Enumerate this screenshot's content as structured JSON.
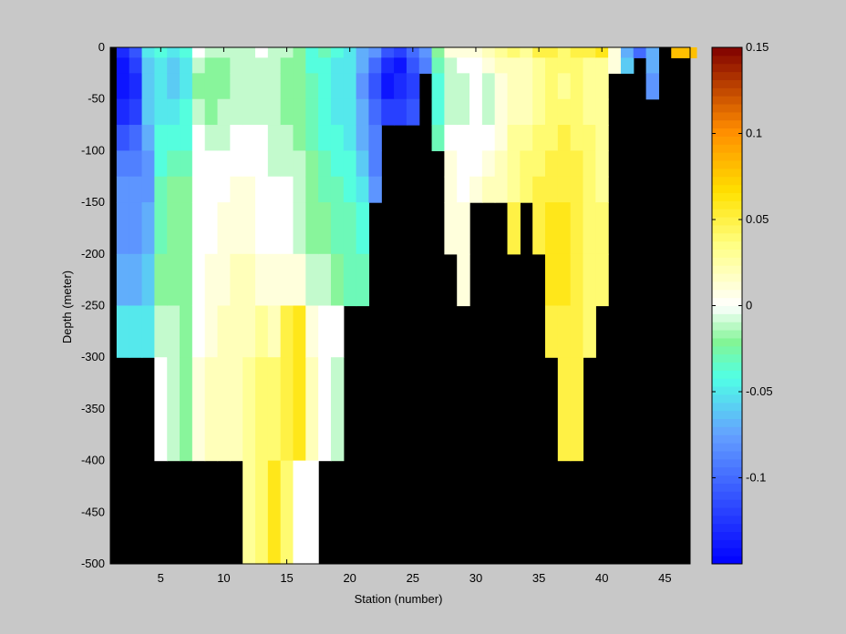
{
  "chart_data": {
    "type": "heatmap",
    "title": "",
    "xlabel": "Station (number)",
    "ylabel": "Depth (meter)",
    "xlim": [
      1,
      47
    ],
    "ylim": [
      -500,
      0
    ],
    "x_ticks": [
      5,
      10,
      15,
      20,
      25,
      30,
      35,
      40,
      45
    ],
    "y_ticks": [
      0,
      -50,
      -100,
      -150,
      -200,
      -250,
      -300,
      -350,
      -400,
      -450,
      -500
    ],
    "colorbar": {
      "clim": [
        -0.15,
        0.15
      ],
      "ticks": [
        0.15,
        0.1,
        0.05,
        0,
        -0.05,
        -0.1
      ],
      "tick_labels": [
        "0.15",
        "0.1",
        "0.05",
        "0",
        "-0.05",
        "-0.1"
      ],
      "colormap": "jet-white-center"
    },
    "depth_bins_top": [
      0,
      -10,
      -25,
      -50,
      -75,
      -100,
      -125,
      -150,
      -200,
      -250,
      -300,
      -400
    ],
    "depth_bins_bottom": [
      -10,
      -25,
      -50,
      -75,
      -100,
      -125,
      -150,
      -200,
      -250,
      -300,
      -400,
      -500
    ],
    "mask_color": "#000000",
    "columns": [
      {
        "station": 2,
        "values": [
          -0.13,
          -0.14,
          -0.14,
          -0.13,
          -0.11,
          -0.09,
          -0.08,
          -0.08,
          -0.07,
          -0.05,
          null,
          null
        ]
      },
      {
        "station": 3,
        "values": [
          -0.11,
          -0.12,
          -0.13,
          -0.12,
          -0.1,
          -0.09,
          -0.08,
          -0.08,
          -0.07,
          -0.05,
          null,
          null
        ]
      },
      {
        "station": 4,
        "values": [
          -0.05,
          -0.06,
          -0.06,
          -0.06,
          -0.07,
          -0.08,
          -0.08,
          -0.07,
          -0.06,
          -0.05,
          null,
          null
        ]
      },
      {
        "station": 5,
        "values": [
          -0.04,
          -0.05,
          -0.05,
          -0.05,
          -0.04,
          -0.04,
          -0.03,
          -0.03,
          -0.02,
          -0.01,
          0.0,
          null
        ]
      },
      {
        "station": 6,
        "values": [
          -0.05,
          -0.06,
          -0.06,
          -0.05,
          -0.04,
          -0.03,
          -0.02,
          -0.02,
          -0.02,
          -0.01,
          -0.01,
          null
        ]
      },
      {
        "station": 7,
        "values": [
          -0.04,
          -0.05,
          -0.05,
          -0.04,
          -0.04,
          -0.03,
          -0.02,
          -0.02,
          -0.02,
          -0.02,
          -0.02,
          null
        ]
      },
      {
        "station": 8,
        "values": [
          0.0,
          -0.01,
          -0.02,
          -0.01,
          0.0,
          0.0,
          0.0,
          0.0,
          0.0,
          0.0,
          0.01,
          null
        ]
      },
      {
        "station": 9,
        "values": [
          -0.01,
          -0.02,
          -0.02,
          -0.02,
          -0.01,
          0.0,
          0.0,
          0.0,
          0.01,
          0.01,
          0.02,
          null
        ]
      },
      {
        "station": 10,
        "values": [
          -0.01,
          -0.02,
          -0.02,
          -0.01,
          -0.01,
          0.0,
          0.0,
          0.01,
          0.01,
          0.02,
          0.02,
          null
        ]
      },
      {
        "station": 11,
        "values": [
          -0.01,
          -0.01,
          -0.01,
          -0.01,
          0.0,
          0.0,
          0.01,
          0.01,
          0.02,
          0.02,
          0.02,
          null
        ]
      },
      {
        "station": 12,
        "values": [
          -0.01,
          -0.01,
          -0.01,
          -0.01,
          0.0,
          0.0,
          0.01,
          0.01,
          0.02,
          0.02,
          0.03,
          0.03
        ]
      },
      {
        "station": 13,
        "values": [
          0.0,
          -0.01,
          -0.01,
          -0.01,
          0.0,
          0.0,
          0.0,
          0.0,
          0.01,
          0.03,
          0.04,
          0.04
        ]
      },
      {
        "station": 14,
        "values": [
          -0.01,
          -0.01,
          -0.01,
          -0.01,
          -0.01,
          -0.01,
          0.0,
          0.0,
          0.01,
          0.02,
          0.04,
          0.06
        ]
      },
      {
        "station": 15,
        "values": [
          -0.01,
          -0.02,
          -0.02,
          -0.02,
          -0.01,
          -0.01,
          0.0,
          0.0,
          0.01,
          0.05,
          0.05,
          0.04
        ]
      },
      {
        "station": 16,
        "values": [
          -0.02,
          -0.02,
          -0.02,
          -0.02,
          -0.02,
          -0.01,
          -0.01,
          -0.01,
          0.01,
          0.06,
          0.06,
          0.0
        ]
      },
      {
        "station": 17,
        "values": [
          -0.04,
          -0.04,
          -0.03,
          -0.03,
          -0.03,
          -0.02,
          -0.02,
          -0.02,
          -0.01,
          0.01,
          0.02,
          0.0
        ]
      },
      {
        "station": 18,
        "values": [
          -0.03,
          -0.04,
          -0.04,
          -0.04,
          -0.04,
          -0.03,
          -0.03,
          -0.02,
          -0.01,
          0.0,
          0.0,
          null
        ]
      },
      {
        "station": 19,
        "values": [
          -0.04,
          -0.05,
          -0.05,
          -0.05,
          -0.04,
          -0.04,
          -0.03,
          -0.03,
          -0.02,
          0.0,
          -0.01,
          null
        ]
      },
      {
        "station": 20,
        "values": [
          -0.05,
          -0.05,
          -0.05,
          -0.05,
          -0.05,
          -0.04,
          -0.04,
          -0.03,
          -0.03,
          null,
          null,
          null
        ]
      },
      {
        "station": 21,
        "values": [
          -0.07,
          -0.07,
          -0.08,
          -0.07,
          -0.07,
          -0.06,
          -0.05,
          -0.04,
          -0.03,
          null,
          null,
          null
        ]
      },
      {
        "station": 22,
        "values": [
          -0.08,
          -0.1,
          -0.11,
          -0.1,
          -0.09,
          -0.09,
          -0.08,
          null,
          null,
          null,
          null,
          null
        ]
      },
      {
        "station": 23,
        "values": [
          -0.11,
          -0.13,
          -0.14,
          -0.12,
          null,
          null,
          null,
          null,
          null,
          null,
          null,
          null
        ]
      },
      {
        "station": 24,
        "values": [
          -0.12,
          -0.14,
          -0.13,
          -0.12,
          null,
          null,
          null,
          null,
          null,
          null,
          null,
          null
        ]
      },
      {
        "station": 25,
        "values": [
          -0.1,
          -0.11,
          -0.12,
          -0.11,
          null,
          null,
          null,
          null,
          null,
          null,
          null,
          null
        ]
      },
      {
        "station": 26,
        "values": [
          -0.08,
          -0.09,
          null,
          null,
          null,
          null,
          null,
          null,
          null,
          null,
          null,
          null
        ]
      },
      {
        "station": 27,
        "values": [
          -0.02,
          -0.03,
          -0.04,
          -0.04,
          -0.03,
          null,
          null,
          null,
          null,
          null,
          null,
          null
        ]
      },
      {
        "station": 28,
        "values": [
          0.01,
          -0.01,
          -0.01,
          -0.01,
          0.0,
          0.01,
          0.01,
          0.01,
          null,
          null,
          null,
          null
        ]
      },
      {
        "station": 29,
        "values": [
          0.01,
          0.0,
          -0.01,
          -0.01,
          0.0,
          0.0,
          0.0,
          0.01,
          0.01,
          null,
          null,
          null
        ]
      },
      {
        "station": 30,
        "values": [
          0.01,
          0.0,
          0.0,
          0.0,
          0.0,
          0.0,
          0.01,
          null,
          null,
          null,
          null,
          null
        ]
      },
      {
        "station": 31,
        "values": [
          0.02,
          0.01,
          -0.01,
          -0.01,
          0.0,
          0.01,
          0.02,
          null,
          null,
          null,
          null,
          null
        ]
      },
      {
        "station": 32,
        "values": [
          0.03,
          0.02,
          0.01,
          0.01,
          0.01,
          0.02,
          0.02,
          null,
          null,
          null,
          null,
          null
        ]
      },
      {
        "station": 33,
        "values": [
          0.04,
          0.02,
          0.02,
          0.02,
          0.03,
          0.03,
          0.03,
          0.05,
          null,
          null,
          null,
          null
        ]
      },
      {
        "station": 34,
        "values": [
          0.03,
          0.02,
          0.02,
          0.02,
          0.03,
          0.04,
          0.04,
          null,
          null,
          null,
          null,
          null
        ]
      },
      {
        "station": 35,
        "values": [
          0.05,
          0.03,
          0.03,
          0.03,
          0.04,
          0.04,
          0.05,
          0.05,
          null,
          null,
          null,
          null
        ]
      },
      {
        "station": 36,
        "values": [
          0.05,
          0.04,
          0.04,
          0.04,
          0.04,
          0.05,
          0.05,
          0.06,
          0.06,
          0.05,
          null,
          null
        ]
      },
      {
        "station": 37,
        "values": [
          0.04,
          0.04,
          0.03,
          0.04,
          0.05,
          0.05,
          0.05,
          0.06,
          0.06,
          0.05,
          0.05,
          null
        ]
      },
      {
        "station": 38,
        "values": [
          0.05,
          0.04,
          0.04,
          0.04,
          0.04,
          0.05,
          0.05,
          0.05,
          0.05,
          0.05,
          0.05,
          null
        ]
      },
      {
        "station": 39,
        "values": [
          0.05,
          0.03,
          0.03,
          0.03,
          0.04,
          0.04,
          0.04,
          0.04,
          0.04,
          0.04,
          null,
          null
        ]
      },
      {
        "station": 40,
        "values": [
          0.06,
          0.03,
          0.03,
          0.03,
          0.03,
          0.03,
          0.03,
          0.04,
          0.04,
          null,
          null,
          null
        ]
      },
      {
        "station": 41,
        "values": [
          0.01,
          0.01,
          null,
          null,
          null,
          null,
          null,
          null,
          null,
          null,
          null,
          null
        ]
      },
      {
        "station": 42,
        "values": [
          -0.07,
          -0.06,
          null,
          null,
          null,
          null,
          null,
          null,
          null,
          null,
          null,
          null
        ]
      },
      {
        "station": 43,
        "values": [
          -0.1,
          null,
          null,
          null,
          null,
          null,
          null,
          null,
          null,
          null,
          null,
          null
        ]
      },
      {
        "station": 44,
        "values": [
          -0.07,
          -0.07,
          -0.08,
          null,
          null,
          null,
          null,
          null,
          null,
          null,
          null,
          null
        ]
      },
      {
        "station": 46,
        "values": [
          0.08,
          null,
          null,
          null,
          null,
          null,
          null,
          null,
          null,
          null,
          null,
          null
        ]
      },
      {
        "station": 47,
        "values": [
          0.08,
          null,
          null,
          null,
          null,
          null,
          null,
          null,
          null,
          null,
          null,
          null
        ]
      }
    ]
  }
}
